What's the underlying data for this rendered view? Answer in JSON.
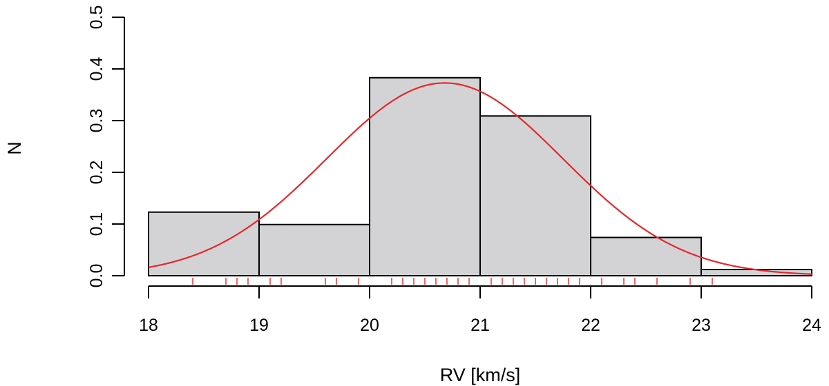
{
  "chart_data": {
    "type": "histogram",
    "title": "",
    "xlabel": "RV [km/s]",
    "ylabel": "N",
    "xlim": [
      18,
      24
    ],
    "ylim": [
      0,
      0.5
    ],
    "x_ticks": [
      "18",
      "19",
      "20",
      "21",
      "22",
      "23",
      "24"
    ],
    "y_ticks": [
      "0.0",
      "0.1",
      "0.2",
      "0.3",
      "0.4",
      "0.5"
    ],
    "bins": [
      {
        "from": 18,
        "to": 19,
        "value": 0.123
      },
      {
        "from": 19,
        "to": 20,
        "value": 0.099
      },
      {
        "from": 20,
        "to": 21,
        "value": 0.383
      },
      {
        "from": 21,
        "to": 22,
        "value": 0.309
      },
      {
        "from": 22,
        "to": 23,
        "value": 0.074
      },
      {
        "from": 23,
        "to": 24,
        "value": 0.012
      }
    ],
    "rug": [
      18.4,
      18.7,
      18.8,
      18.9,
      19.1,
      19.2,
      19.6,
      19.7,
      19.9,
      20.2,
      20.3,
      20.4,
      20.5,
      20.6,
      20.7,
      20.8,
      20.9,
      21.1,
      21.2,
      21.3,
      21.4,
      21.5,
      21.6,
      21.7,
      21.8,
      21.9,
      22.1,
      22.3,
      22.4,
      22.6,
      22.9,
      23.1
    ],
    "fit": {
      "type": "normal",
      "mean": 20.68,
      "sd": 1.07
    },
    "grid": false,
    "legend": "none",
    "colors": {
      "bar_fill": "#d3d3d6",
      "bar_stroke": "#000000",
      "fit_line": "#e8262a",
      "rug": "#e8262a",
      "axis": "#000000"
    }
  }
}
